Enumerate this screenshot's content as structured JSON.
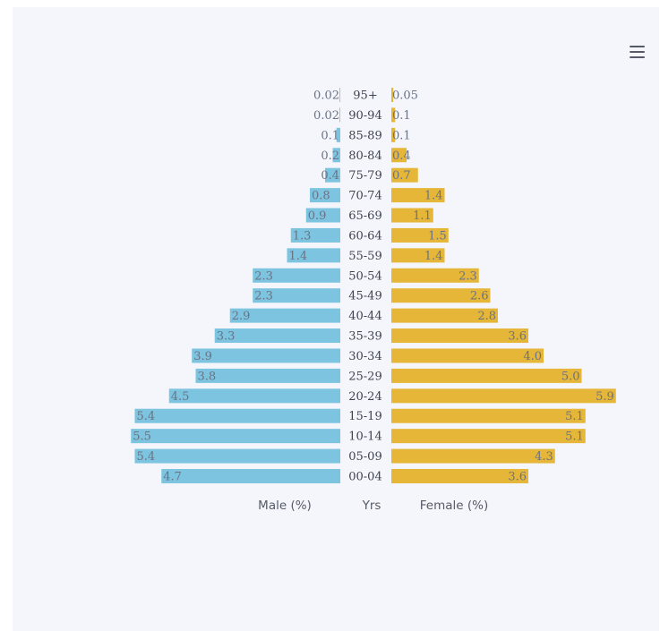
{
  "menu": {
    "icon": "hamburger-menu-icon"
  },
  "chart_data": {
    "type": "bar",
    "orientation": "horizontal",
    "layout": "population-pyramid",
    "categories": [
      "95+",
      "90-94",
      "85-89",
      "80-84",
      "75-79",
      "70-74",
      "65-69",
      "60-64",
      "55-59",
      "50-54",
      "45-49",
      "40-44",
      "35-39",
      "30-34",
      "25-29",
      "20-24",
      "15-19",
      "10-14",
      "05-09",
      "00-04"
    ],
    "series": [
      {
        "name": "Male (%)",
        "color": "#7cc4e0",
        "values": [
          0.02,
          0.02,
          0.1,
          0.2,
          0.4,
          0.8,
          0.9,
          1.3,
          1.4,
          2.3,
          2.3,
          2.9,
          3.3,
          3.9,
          3.8,
          4.5,
          5.4,
          5.5,
          5.4,
          4.7
        ],
        "labels": [
          "0.02",
          "0.02",
          "0.1",
          "0.2",
          "0.4",
          "0.8",
          "0.9",
          "1.3",
          "1.4",
          "2.3",
          "2.3",
          "2.9",
          "3.3",
          "3.9",
          "3.8",
          "4.5",
          "5.4",
          "5.5",
          "5.4",
          "4.7"
        ]
      },
      {
        "name": "Female (%)",
        "color": "#e5b637",
        "values": [
          0.05,
          0.1,
          0.1,
          0.4,
          0.7,
          1.4,
          1.1,
          1.5,
          1.4,
          2.3,
          2.6,
          2.8,
          3.6,
          4.0,
          5.0,
          5.9,
          5.1,
          5.1,
          4.3,
          3.6
        ],
        "labels": [
          "0.05",
          "0.1",
          "0.1",
          "0.4",
          "0.7",
          "1.4",
          "1.1",
          "1.5",
          "1.4",
          "2.3",
          "2.6",
          "2.8",
          "3.6",
          "4.0",
          "5.0",
          "5.9",
          "5.1",
          "5.1",
          "4.3",
          "3.6"
        ]
      }
    ],
    "xlabel_left": "Male (%)",
    "xlabel_center": "Yrs",
    "xlabel_right": "Female (%)",
    "grid": false,
    "legend": "none"
  }
}
